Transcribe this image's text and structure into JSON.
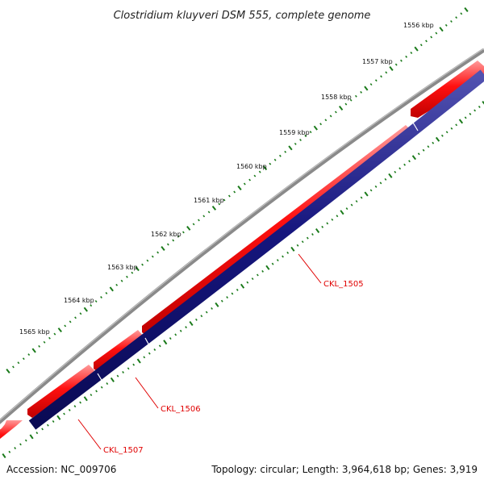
{
  "map": {
    "title": "Clostridium kluyveri DSM 555, complete genome",
    "accession": "Accession: NC_009706",
    "summary": "Topology: circular; Length: 3,964,618 bp; Genes: 3,919",
    "colors": {
      "backbone": "#888888",
      "forward_gene": "#ff1a1a",
      "reverse_gene": "#1a1a8c",
      "ticks": "#1a7a1a",
      "gene_label": "#e00000"
    },
    "tick_labels": [
      "1556 kbp",
      "1557 kbp",
      "1558 kbp",
      "1559 kbp",
      "1560 kbp",
      "1561 kbp",
      "1562 kbp",
      "1563 kbp",
      "1564 kbp",
      "1565 kbp"
    ],
    "gene_labels": [
      "CKL_1505",
      "CKL_1506",
      "CKL_1507"
    ]
  }
}
